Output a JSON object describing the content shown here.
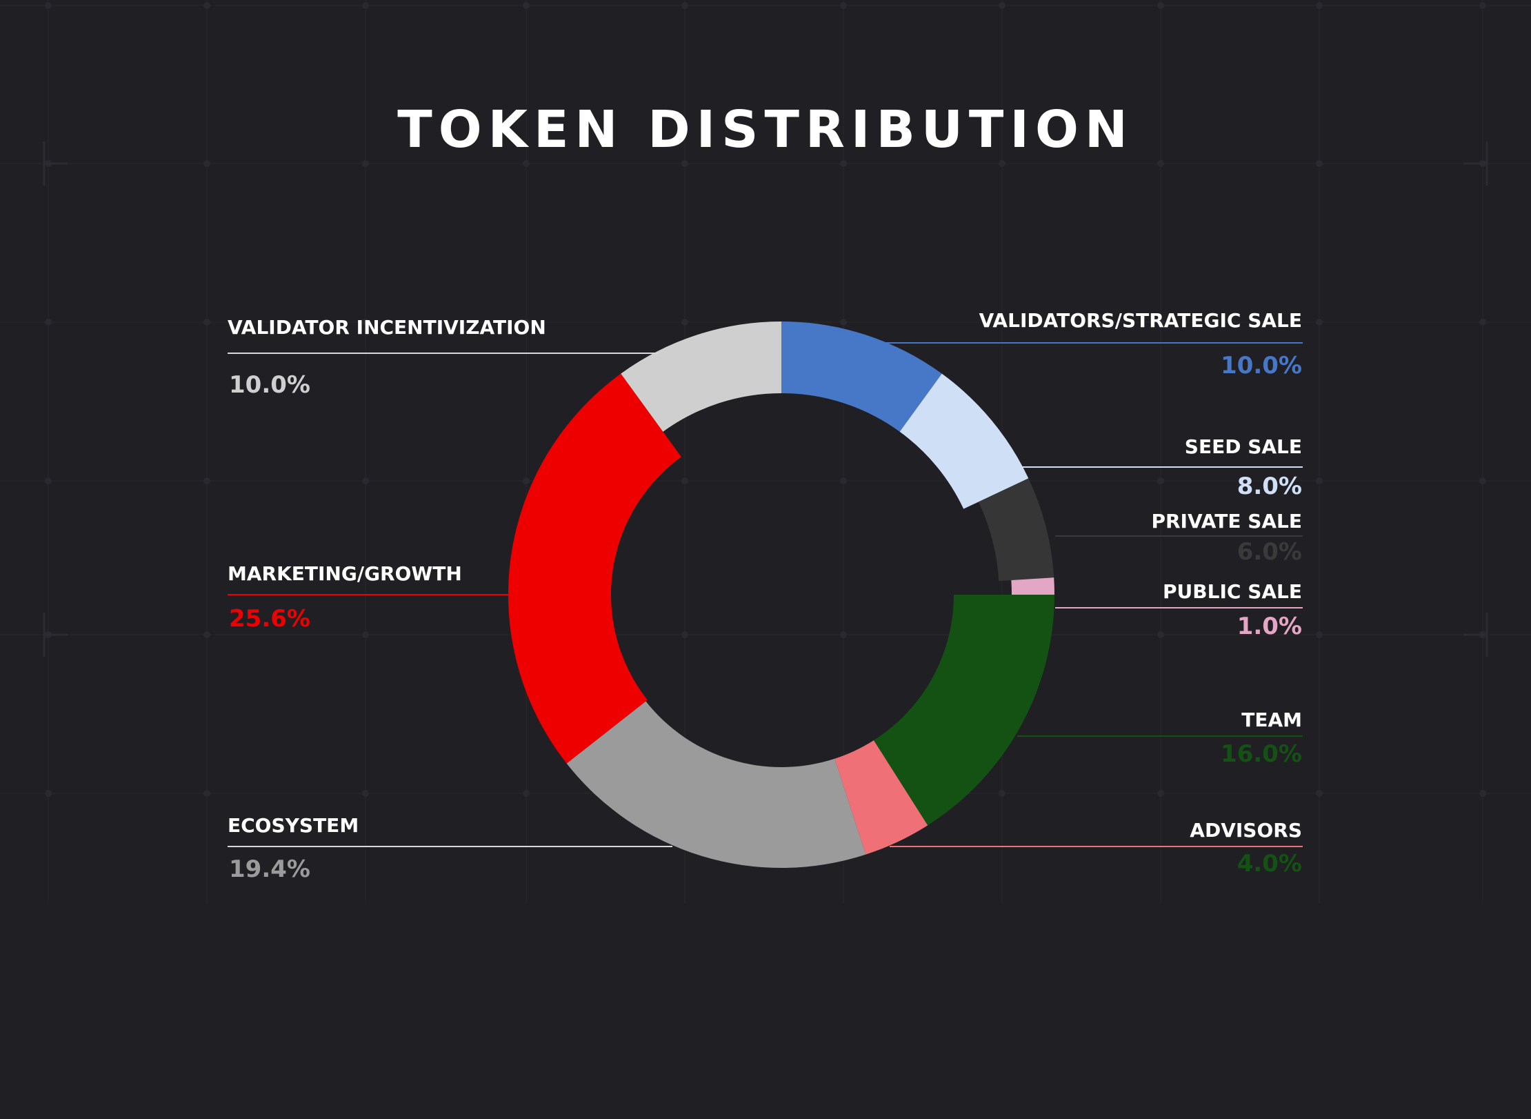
{
  "chart_data": {
    "type": "pie",
    "variant": "donut",
    "title": "TOKEN DISTRIBUTION",
    "legend": "callout-labels",
    "slices": [
      {
        "name": "VALIDATORS/STRATEGIC SALE",
        "value": 10.0,
        "label": "10.0%",
        "color": "#4778c8",
        "value_color": "#4778c8"
      },
      {
        "name": "SEED SALE",
        "value": 8.0,
        "label": "8.0%",
        "color": "#cfe0f6",
        "value_color": "#cfe0f6"
      },
      {
        "name": "PRIVATE SALE",
        "value": 6.0,
        "label": "6.0%",
        "color": "#363636",
        "value_color": "#3a3a3a"
      },
      {
        "name": "PUBLIC SALE",
        "value": 1.0,
        "label": "1.0%",
        "color": "#e3a7c5",
        "value_color": "#e3a7c5"
      },
      {
        "name": "TEAM",
        "value": 16.0,
        "label": "16.0%",
        "color": "#145214",
        "value_color": "#145214"
      },
      {
        "name": "ADVISORS",
        "value": 4.0,
        "label": "4.0%",
        "color": "#f07078",
        "value_color": "#145214"
      },
      {
        "name": "ECOSYSTEM",
        "value": 19.4,
        "label": "19.4%",
        "color": "#9b9b9b",
        "value_color": "#9b9b9b"
      },
      {
        "name": "MARKETING/GROWTH",
        "value": 25.6,
        "label": "25.6%",
        "color": "#ee0000",
        "value_color": "#ee0000"
      },
      {
        "name": "VALIDATOR INCENTIVIZATION",
        "value": 10.0,
        "label": "10.0%",
        "color": "#cfcfcf",
        "value_color": "#cfcfcf"
      }
    ]
  }
}
